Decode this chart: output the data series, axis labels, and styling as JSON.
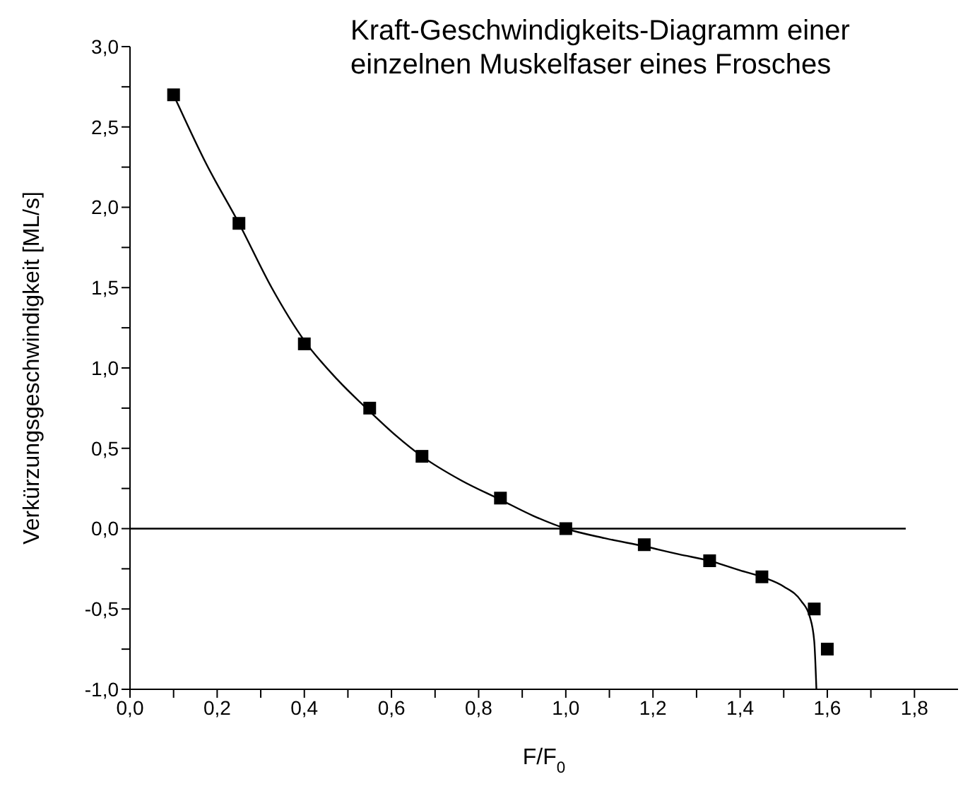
{
  "chart_data": {
    "type": "scatter",
    "title": "Kraft-Geschwindigkeits-Diagramm einer\neinzelnen Muskelfaser eines Frosches",
    "xlabel": "F/F$_{0}$",
    "ylabel": "Verkürzungsgeschwindigkeit [ML/s]",
    "grid": false,
    "xlim": [
      0,
      1.9
    ],
    "xticks": [
      {
        "value": 0,
        "label": "0,0"
      },
      {
        "value": 0.1,
        "label": null
      },
      {
        "value": 0.2,
        "label": "0,2"
      },
      {
        "value": 0.3,
        "label": null
      },
      {
        "value": 0.4,
        "label": "0,4"
      },
      {
        "value": 0.5,
        "label": null
      },
      {
        "value": 0.6,
        "label": "0,6"
      },
      {
        "value": 0.7,
        "label": null
      },
      {
        "value": 0.8,
        "label": "0,8"
      },
      {
        "value": 0.9,
        "label": null
      },
      {
        "value": 1,
        "label": "1,0"
      },
      {
        "value": 1.1,
        "label": null
      },
      {
        "value": 1.2,
        "label": "1,2"
      },
      {
        "value": 1.3,
        "label": null
      },
      {
        "value": 1.4,
        "label": "1,4"
      },
      {
        "value": 1.5,
        "label": null
      },
      {
        "value": 1.6,
        "label": "1,6"
      },
      {
        "value": 1.7,
        "label": null
      },
      {
        "value": 1.8,
        "label": "1,8"
      }
    ],
    "ylim": [
      -1,
      3
    ],
    "yticks": [
      {
        "value": -1,
        "label": "-1,0"
      },
      {
        "value": -0.75,
        "label": null
      },
      {
        "value": -0.5,
        "label": "-0,5"
      },
      {
        "value": -0.25,
        "label": null
      },
      {
        "value": 0,
        "label": "0,0"
      },
      {
        "value": 0.25,
        "label": null
      },
      {
        "value": 0.5,
        "label": "0,5"
      },
      {
        "value": 0.75,
        "label": null
      },
      {
        "value": 1,
        "label": "1,0"
      },
      {
        "value": 1.25,
        "label": null
      },
      {
        "value": 1.5,
        "label": "1,5"
      },
      {
        "value": 1.75,
        "label": null
      },
      {
        "value": 2,
        "label": "2,0"
      },
      {
        "value": 2.25,
        "label": null
      },
      {
        "value": 2.5,
        "label": "2,5"
      },
      {
        "value": 2.75,
        "label": null
      },
      {
        "value": 3,
        "label": "3,0"
      }
    ],
    "series": [
      {
        "marker": "square",
        "color": "#000000",
        "x": [
          0.1,
          0.25,
          0.4,
          0.55,
          0.67,
          0.85,
          1.0,
          1.18,
          1.33,
          1.45,
          1.57,
          1.6
        ],
        "values": [
          2.7,
          1.9,
          1.15,
          0.75,
          0.45,
          0.19,
          0.0,
          -0.1,
          -0.2,
          -0.3,
          -0.5,
          -0.75
        ]
      },
      {
        "type": "line",
        "marker": "none",
        "color": "#000000",
        "x": [
          0.1,
          0.175,
          0.25,
          0.325,
          0.4,
          0.475,
          0.55,
          0.61,
          0.67,
          0.76,
          0.85,
          0.925,
          1.0,
          1.09,
          1.18,
          1.26,
          1.33,
          1.4,
          1.45,
          1.5,
          1.54,
          1.56,
          1.57,
          1.575
        ],
        "values": [
          2.7,
          2.27,
          1.9,
          1.5,
          1.17,
          0.93,
          0.73,
          0.58,
          0.45,
          0.3,
          0.18,
          0.08,
          0.0,
          -0.06,
          -0.11,
          -0.16,
          -0.2,
          -0.26,
          -0.3,
          -0.36,
          -0.45,
          -0.55,
          -0.7,
          -1.0
        ]
      },
      {
        "type": "line",
        "marker": "none",
        "color": "#000000",
        "x": [
          0,
          1.78
        ],
        "values": [
          0,
          0
        ]
      }
    ]
  }
}
